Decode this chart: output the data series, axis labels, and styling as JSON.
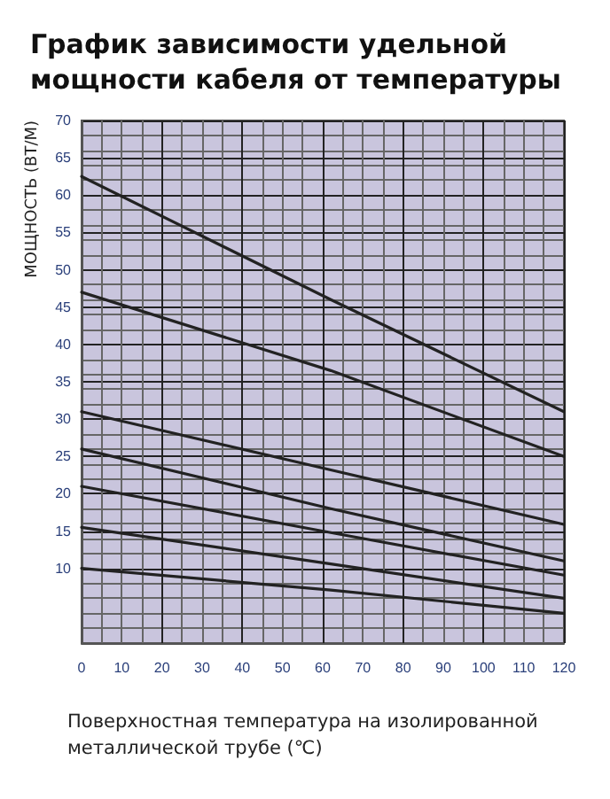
{
  "chart_data": {
    "type": "line",
    "title": "График зависимости удельной\nмощности кабеля от температуры",
    "xlabel": "Поверхностная температура на изолированной\nметаллической трубе (℃)",
    "ylabel": "МОЩНОСТЬ (ВТ/М)",
    "xlim": [
      0,
      120
    ],
    "xticks": [
      0,
      10,
      20,
      30,
      40,
      50,
      60,
      70,
      80,
      90,
      100,
      110,
      120
    ],
    "ylim": [
      0,
      70
    ],
    "yticks": [
      10,
      15,
      20,
      25,
      30,
      35,
      40,
      45,
      50,
      55,
      60,
      65,
      70
    ],
    "grid": true,
    "marker": "none",
    "line_style": "solid",
    "series": [
      {
        "color": "#222222",
        "x": [
          0,
          62,
          120
        ],
        "values": [
          62.5,
          46,
          31
        ]
      },
      {
        "color": "#222222",
        "x": [
          0,
          62,
          120
        ],
        "values": [
          47,
          36.5,
          25
        ]
      },
      {
        "color": "#222222",
        "x": [
          0,
          62,
          120
        ],
        "values": [
          31,
          23.2,
          15.9
        ]
      },
      {
        "color": "#222222",
        "x": [
          0,
          62,
          120
        ],
        "values": [
          26,
          18,
          11
        ]
      },
      {
        "color": "#222222",
        "x": [
          0,
          62,
          120
        ],
        "values": [
          21,
          14.8,
          9.1
        ]
      },
      {
        "color": "#222222",
        "x": [
          0,
          62,
          120
        ],
        "values": [
          15.5,
          10.6,
          6
        ]
      },
      {
        "color": "#222222",
        "x": [
          0,
          62,
          120
        ],
        "values": [
          10,
          7.1,
          4
        ]
      }
    ]
  }
}
